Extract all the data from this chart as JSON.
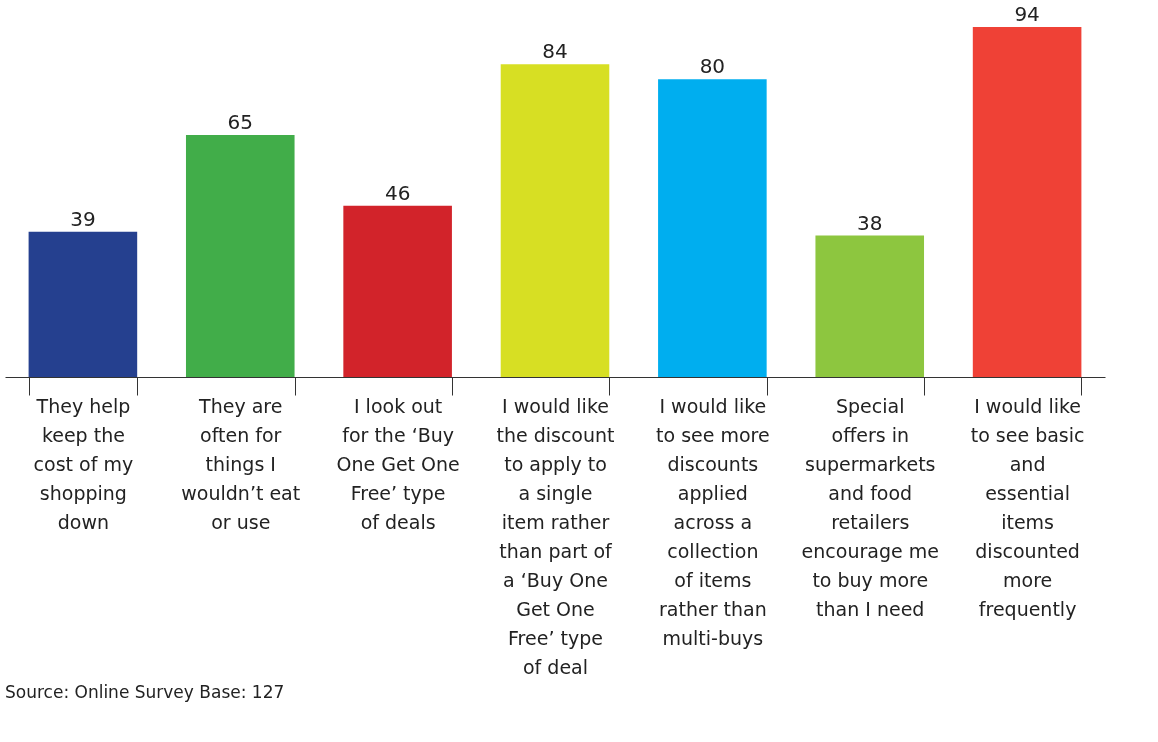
{
  "chart_data": {
    "type": "bar",
    "categories": [
      "They help keep the cost of my shopping down",
      "They are often for things I wouldn’t eat or use",
      "I look out for the ‘Buy One Get One Free’ type of deals",
      "I would like the discount to apply to a single item rather than part of a ‘Buy One Get One Free’ type of deal",
      "I would like to see more discounts applied across a collection of items rather than multi-buys",
      "Special offers in supermarkets and food retailers encourage me to buy more than I need",
      "I would like to see basic and essential items discounted more frequently"
    ],
    "values": [
      39,
      65,
      46,
      84,
      80,
      38,
      94
    ],
    "colors": [
      "#25408f",
      "#41ad49",
      "#d2232a",
      "#d7df23",
      "#00aeef",
      "#8dc63f",
      "#ef4136"
    ],
    "data_labels": true,
    "annotations": [
      "Source: Online Survey Base: 127"
    ]
  }
}
